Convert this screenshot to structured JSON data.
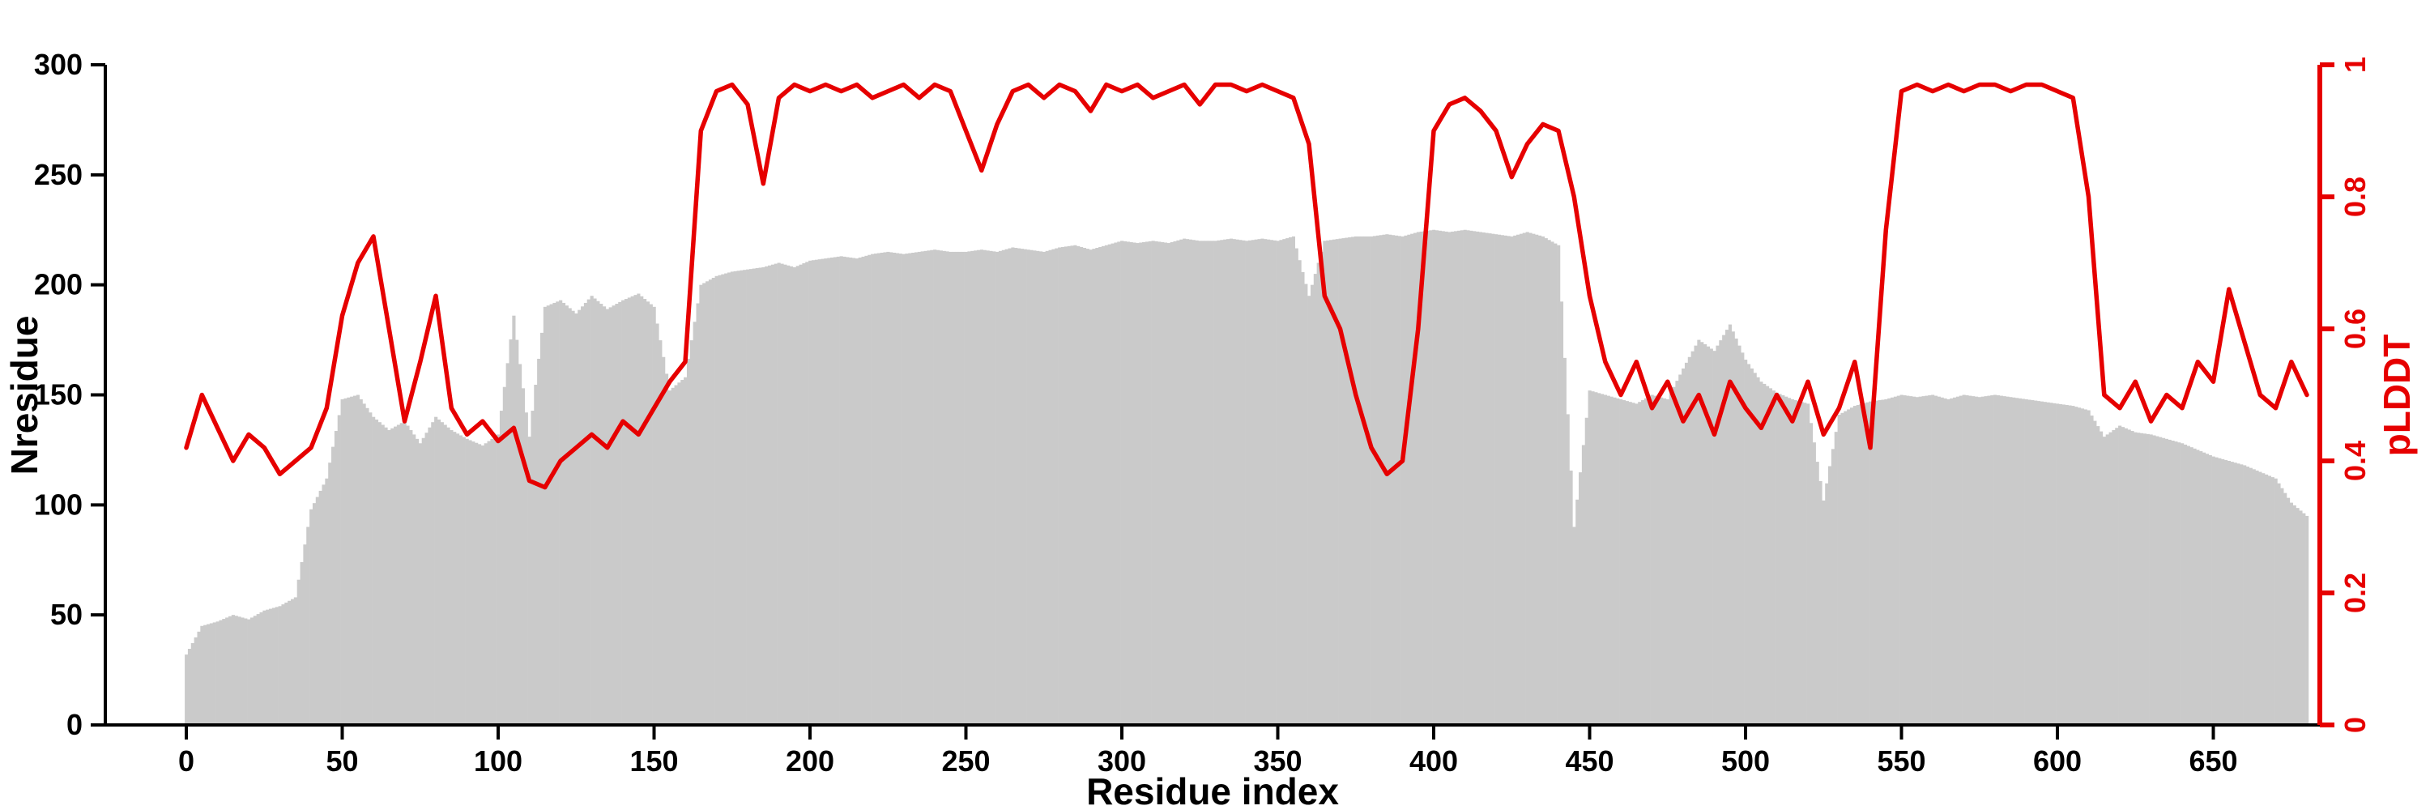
{
  "chart_data": {
    "type": "bar+line",
    "title": "",
    "xlabel": "Residue index",
    "ylabel_left": "Nresidue",
    "ylabel_right": "pLDDT",
    "xlim": [
      0,
      680
    ],
    "ylim_left": [
      0,
      300
    ],
    "ylim_right": [
      0,
      1
    ],
    "xticks": [
      0,
      50,
      100,
      150,
      200,
      250,
      300,
      350,
      400,
      450,
      500,
      550,
      600,
      650
    ],
    "yticks_left": [
      0,
      50,
      100,
      150,
      200,
      250,
      300
    ],
    "yticks_right": [
      0,
      0.2,
      0.4,
      0.6,
      0.8,
      1
    ],
    "yticks_right_labels": [
      "0",
      "0.2",
      "0.4",
      "0.6",
      "0.8",
      "1"
    ],
    "grid": false,
    "legend": "none",
    "colors": {
      "bars": "#cacaca",
      "line": "#e60000",
      "left_axis": "#000000",
      "right_axis": "#e60000"
    },
    "x": [
      0,
      5,
      10,
      15,
      20,
      25,
      30,
      35,
      40,
      45,
      50,
      55,
      60,
      65,
      70,
      75,
      80,
      85,
      90,
      95,
      100,
      105,
      110,
      115,
      120,
      125,
      130,
      135,
      140,
      145,
      150,
      155,
      160,
      165,
      170,
      175,
      180,
      185,
      190,
      195,
      200,
      205,
      210,
      215,
      220,
      225,
      230,
      235,
      240,
      245,
      250,
      255,
      260,
      265,
      270,
      275,
      280,
      285,
      290,
      295,
      300,
      305,
      310,
      315,
      320,
      325,
      330,
      335,
      340,
      345,
      350,
      355,
      360,
      365,
      370,
      375,
      380,
      385,
      390,
      395,
      400,
      405,
      410,
      415,
      420,
      425,
      430,
      435,
      440,
      445,
      450,
      455,
      460,
      465,
      470,
      475,
      480,
      485,
      490,
      495,
      500,
      505,
      510,
      515,
      520,
      525,
      530,
      535,
      540,
      545,
      550,
      555,
      560,
      565,
      570,
      575,
      580,
      585,
      590,
      595,
      600,
      605,
      610,
      615,
      620,
      625,
      630,
      635,
      640,
      645,
      650,
      655,
      660,
      665,
      670,
      675,
      680
    ],
    "series": [
      {
        "name": "Nresidue",
        "kind": "bar",
        "axis": "left",
        "color": "#cacaca",
        "values": [
          32,
          45,
          47,
          50,
          48,
          52,
          54,
          58,
          98,
          112,
          148,
          150,
          140,
          134,
          138,
          128,
          140,
          134,
          130,
          127,
          132,
          186,
          131,
          190,
          193,
          187,
          195,
          189,
          193,
          196,
          190,
          152,
          158,
          200,
          204,
          206,
          207,
          208,
          210,
          208,
          211,
          212,
          213,
          212,
          214,
          215,
          214,
          215,
          216,
          215,
          215,
          216,
          215,
          217,
          216,
          215,
          217,
          218,
          216,
          218,
          220,
          219,
          220,
          219,
          221,
          220,
          220,
          221,
          220,
          221,
          220,
          222,
          195,
          220,
          221,
          222,
          222,
          223,
          222,
          224,
          225,
          224,
          225,
          224,
          223,
          222,
          224,
          222,
          218,
          90,
          152,
          150,
          148,
          146,
          150,
          148,
          162,
          175,
          170,
          182,
          166,
          156,
          151,
          148,
          146,
          102,
          141,
          145,
          147,
          148,
          150,
          149,
          150,
          148,
          150,
          149,
          150,
          149,
          148,
          147,
          146,
          145,
          143,
          131,
          136,
          133,
          132,
          130,
          128,
          125,
          122,
          120,
          118,
          115,
          112,
          101,
          95
        ]
      },
      {
        "name": "pLDDT",
        "kind": "line",
        "axis": "right",
        "color": "#e60000",
        "values": [
          0.42,
          0.5,
          0.45,
          0.4,
          0.44,
          0.42,
          0.38,
          0.4,
          0.42,
          0.48,
          0.62,
          0.7,
          0.74,
          0.6,
          0.46,
          0.55,
          0.65,
          0.48,
          0.44,
          0.46,
          0.43,
          0.45,
          0.37,
          0.36,
          0.4,
          0.42,
          0.44,
          0.42,
          0.46,
          0.44,
          0.48,
          0.52,
          0.55,
          0.9,
          0.96,
          0.97,
          0.94,
          0.82,
          0.95,
          0.97,
          0.96,
          0.97,
          0.96,
          0.97,
          0.95,
          0.96,
          0.97,
          0.95,
          0.97,
          0.96,
          0.9,
          0.84,
          0.91,
          0.96,
          0.97,
          0.95,
          0.97,
          0.96,
          0.93,
          0.97,
          0.96,
          0.97,
          0.95,
          0.96,
          0.97,
          0.94,
          0.97,
          0.97,
          0.96,
          0.97,
          0.96,
          0.95,
          0.88,
          0.65,
          0.6,
          0.5,
          0.42,
          0.38,
          0.4,
          0.6,
          0.9,
          0.94,
          0.95,
          0.93,
          0.9,
          0.83,
          0.88,
          0.91,
          0.9,
          0.8,
          0.65,
          0.55,
          0.5,
          0.55,
          0.48,
          0.52,
          0.46,
          0.5,
          0.44,
          0.52,
          0.48,
          0.45,
          0.5,
          0.46,
          0.52,
          0.44,
          0.48,
          0.55,
          0.42,
          0.75,
          0.96,
          0.97,
          0.96,
          0.97,
          0.96,
          0.97,
          0.97,
          0.96,
          0.97,
          0.97,
          0.96,
          0.95,
          0.8,
          0.5,
          0.48,
          0.52,
          0.46,
          0.5,
          0.48,
          0.55,
          0.52,
          0.66,
          0.58,
          0.5,
          0.48,
          0.55,
          0.5
        ]
      }
    ]
  }
}
